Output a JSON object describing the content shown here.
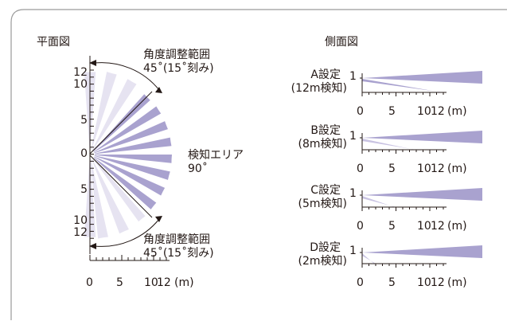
{
  "plan_view": {
    "title": "平面図",
    "angle_note_top": {
      "line1": "角度調整範囲",
      "line2": "45˚(15˚刻み)"
    },
    "angle_note_bottom": {
      "line1": "角度調整範囲",
      "line2": "45˚(15˚刻み)"
    },
    "detection_area": {
      "line1": "検知エリア",
      "line2": "90˚"
    },
    "y_ticks_top": [
      "12",
      "10",
      "5"
    ],
    "y_tick_zero": "0",
    "y_ticks_bottom": [
      "5",
      "10",
      "12"
    ],
    "x_ticks": [
      "0",
      "5",
      "10",
      "12"
    ],
    "x_unit": "(m)"
  },
  "side_view": {
    "title": "側面図",
    "panels": [
      {
        "setting": "A設定",
        "range": "(12m検知)",
        "y_tick": "1",
        "x_ticks": [
          "0",
          "5",
          "10",
          "12"
        ],
        "unit": "(m)"
      },
      {
        "setting": "B設定",
        "range": "(8m検知)",
        "y_tick": "1",
        "x_ticks": [
          "0",
          "5",
          "10",
          "12"
        ],
        "unit": "(m)"
      },
      {
        "setting": "C設定",
        "range": "(5m検知)",
        "y_tick": "1",
        "x_ticks": [
          "0",
          "5",
          "10",
          "12"
        ],
        "unit": "(m)"
      },
      {
        "setting": "D設定",
        "range": "(2m検知)",
        "y_tick": "1",
        "x_ticks": [
          "0",
          "5",
          "10",
          "12"
        ],
        "unit": "(m)"
      }
    ]
  },
  "colors": {
    "beam_dark": "#a9a2cf",
    "beam_light": "#e6e3f1",
    "line": "#231815",
    "frame": "#9a9a9a"
  }
}
